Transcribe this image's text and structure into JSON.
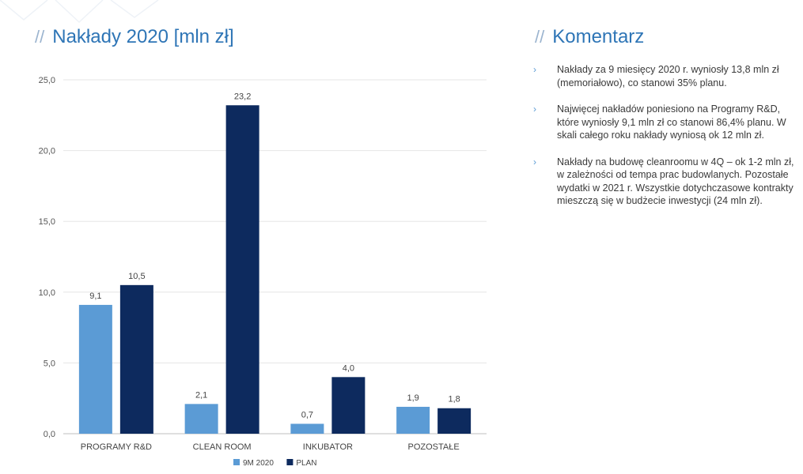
{
  "left_panel": {
    "title_slash": "//",
    "title": "Nakłady 2020 [mln zł]"
  },
  "right_panel": {
    "title_slash": "//",
    "title": "Komentarz",
    "bullet_icon": "chevron-right-icon",
    "comments": [
      "Nakłady za 9 miesięcy 2020 r. wyniosły 13,8 mln zł (memoriałowo), co stanowi 35% planu.",
      "Najwięcej nakładów poniesiono na Programy R&D, które wyniosły 9,1 mln zł co stanowi 86,4% planu. W skali całego roku nakłady wyniosą ok 12 mln zł.",
      "Nakłady na budowę cleanroomu w 4Q – ok 1-2 mln zł, w zależności od tempa prac budowlanych. Pozostałe wydatki w 2021 r. Wszystkie dotychczasowe kontrakty mieszczą się w budżecie inwestycji (24 mln zł)."
    ]
  },
  "chart_data": {
    "type": "bar",
    "categories": [
      "PROGRAMY R&D",
      "CLEAN ROOM",
      "INKUBATOR",
      "POZOSTAŁE"
    ],
    "series": [
      {
        "name": "9M 2020",
        "values": [
          9.1,
          2.1,
          0.7,
          1.9
        ],
        "color": "#5b9bd5",
        "labels": [
          "9,1",
          "2,1",
          "0,7",
          "1,9"
        ]
      },
      {
        "name": "PLAN",
        "values": [
          10.5,
          23.2,
          4.0,
          1.8
        ],
        "color": "#0d2a5e",
        "labels": [
          "10,5",
          "23,2",
          "4,0",
          "1,8"
        ]
      }
    ],
    "y_ticks": [
      0,
      5,
      10,
      15,
      20,
      25
    ],
    "y_tick_labels": [
      "0,0",
      "5,0",
      "10,0",
      "15,0",
      "20,0",
      "25,0"
    ],
    "ylim": [
      0,
      25
    ],
    "grid": true,
    "legend": "bottom",
    "title": "",
    "xlabel": "",
    "ylabel": ""
  }
}
